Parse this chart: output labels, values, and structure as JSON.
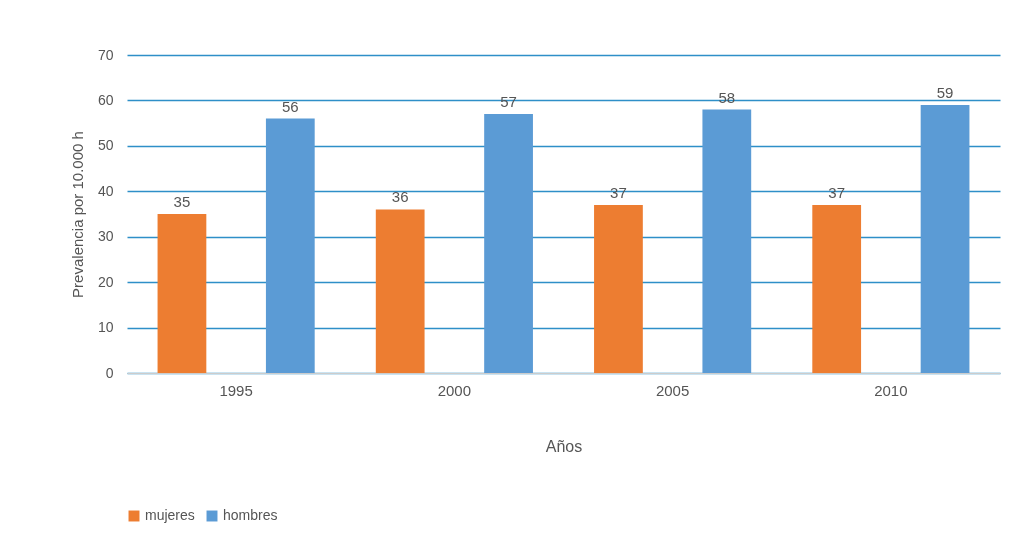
{
  "chart_data": {
    "type": "bar",
    "xlabel": "Años",
    "ylabel": "Prevalencia por 10.000 h",
    "categories": [
      "1995",
      "2000",
      "2005",
      "2010"
    ],
    "series": [
      {
        "name": "mujeres",
        "color": "#ed7d31",
        "values": [
          35,
          36,
          37,
          37
        ]
      },
      {
        "name": "hombres",
        "color": "#5b9bd5",
        "values": [
          56,
          57,
          58,
          59
        ]
      }
    ],
    "ylim": [
      0,
      70
    ],
    "yticks": [
      0,
      10,
      20,
      30,
      40,
      50,
      60,
      70
    ],
    "grid": "y",
    "data_labels": true,
    "legend": "bottom"
  }
}
